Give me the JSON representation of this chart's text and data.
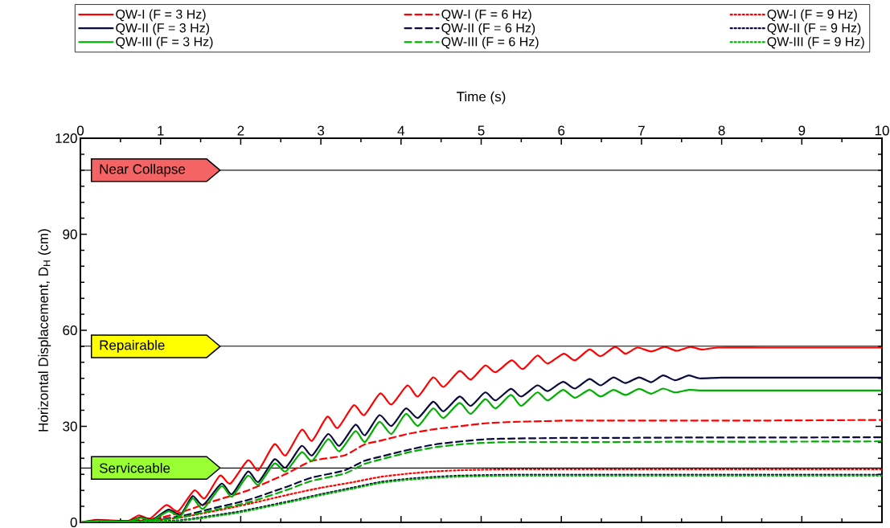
{
  "chart_data": {
    "type": "line",
    "xlabel": "Time (s)",
    "ylabel": "Horizontal Displacement, D$_{H}$ (cm)",
    "xlim": [
      0,
      10
    ],
    "xticks": [
      0,
      1,
      2,
      3,
      4,
      5,
      6,
      7,
      8,
      9,
      10
    ],
    "ylim": [
      0,
      120
    ],
    "yticks": [
      0,
      30,
      60,
      90,
      120
    ],
    "legend": "top",
    "marker": "none",
    "ref_lines": [
      {
        "axis": "y",
        "value": 110,
        "label": "Near Collapse",
        "color": "#000000"
      },
      {
        "axis": "y",
        "value": 55,
        "label": "Repairable",
        "color": "#000000"
      },
      {
        "axis": "y",
        "value": 17,
        "label": "Serviceable",
        "color": "#000000"
      }
    ],
    "series": [
      {
        "name": "QW-I (F = 3 Hz)",
        "color": "#ff0000",
        "line_style": "solid",
        "x": [
          0,
          0.2,
          0.4,
          0.6,
          0.73,
          0.87,
          1.07,
          1.22,
          1.42,
          1.55,
          1.74,
          1.87,
          2.09,
          2.22,
          2.42,
          2.56,
          2.76,
          2.89,
          3.08,
          3.21,
          3.41,
          3.54,
          3.74,
          3.88,
          4.08,
          4.21,
          4.4,
          4.53,
          4.73,
          4.87,
          5.05,
          5.18,
          5.38,
          5.52,
          5.7,
          5.83,
          6.03,
          6.17,
          6.35,
          6.49,
          6.67,
          6.8,
          6.95,
          7.12,
          7.29,
          7.44,
          7.61,
          7.76,
          7.95,
          8.5,
          9,
          10
        ],
        "values": [
          0,
          0.8,
          0.6,
          0.5,
          2.2,
          1.2,
          5.4,
          3.5,
          10,
          7.5,
          14.6,
          12.1,
          19.4,
          16.3,
          24.4,
          20.9,
          28.9,
          25.5,
          33.0,
          29.5,
          36.6,
          33.5,
          40.3,
          36.8,
          42.8,
          39.3,
          45.3,
          42.3,
          47.3,
          44.6,
          49.0,
          46.9,
          50.6,
          47.9,
          52.1,
          49.6,
          52.7,
          50.6,
          54.0,
          51.9,
          54.8,
          52.7,
          54.6,
          53.4,
          54.8,
          53.6,
          54.8,
          54.0,
          54.6,
          54.6,
          54.6,
          54.6
        ]
      },
      {
        "name": "QW-I (F = 6 Hz)",
        "color": "#ff0000",
        "line_style": "dashed",
        "x": [
          0,
          0.5,
          1.0,
          1.3,
          1.62,
          2.09,
          2.56,
          2.89,
          3.29,
          3.54,
          3.74,
          4.08,
          4.41,
          4.75,
          5.08,
          5.42,
          5.75,
          6.09,
          6.75,
          7.5,
          8.5,
          10
        ],
        "values": [
          0,
          0.2,
          1.5,
          3.5,
          6.3,
          10.0,
          15.1,
          19.2,
          20.9,
          24.3,
          25.5,
          27.6,
          29.1,
          30.1,
          31.0,
          31.4,
          31.6,
          31.8,
          31.8,
          31.8,
          31.8,
          32.0
        ]
      },
      {
        "name": "QW-I (F = 9 Hz)",
        "color": "#ff0000",
        "line_style": "dotted",
        "x": [
          0,
          0.5,
          1.0,
          1.29,
          1.96,
          2.62,
          3.0,
          3.41,
          3.74,
          4.08,
          4.41,
          4.74,
          5.42,
          6.5,
          8,
          10
        ],
        "values": [
          0,
          0.2,
          0.9,
          1.7,
          5.0,
          8.8,
          10.8,
          12.6,
          14.2,
          15.2,
          15.9,
          16.3,
          16.6,
          16.6,
          16.6,
          16.6
        ]
      },
      {
        "name": "QW-II (F = 3 Hz)",
        "color": "#0a0a3c",
        "line_style": "solid",
        "x": [
          0,
          0.2,
          0.4,
          0.6,
          0.75,
          0.9,
          1.1,
          1.25,
          1.4,
          1.53,
          1.76,
          1.89,
          2.09,
          2.22,
          2.42,
          2.56,
          2.76,
          2.89,
          3.09,
          3.23,
          3.43,
          3.55,
          3.73,
          3.88,
          4.06,
          4.21,
          4.4,
          4.53,
          4.73,
          4.87,
          5.05,
          5.18,
          5.37,
          5.5,
          5.7,
          5.83,
          6.02,
          6.17,
          6.35,
          6.49,
          6.65,
          6.8,
          6.97,
          7.12,
          7.27,
          7.42,
          7.59,
          7.72,
          8.0,
          8.5,
          9,
          10
        ],
        "values": [
          0,
          0.6,
          0.5,
          0.4,
          1.6,
          0.9,
          4.0,
          2.4,
          8.2,
          5.4,
          12.1,
          8.8,
          15.9,
          12.6,
          19.7,
          17.1,
          23.9,
          20.9,
          27.6,
          23.9,
          30.5,
          27.2,
          33.5,
          30.1,
          35.6,
          32.6,
          37.7,
          34.7,
          39.3,
          36.4,
          40.6,
          38.1,
          41.7,
          39.3,
          42.8,
          41.0,
          43.9,
          41.8,
          44.8,
          42.8,
          45.3,
          43.5,
          45.3,
          43.8,
          45.9,
          44.4,
          45.9,
          45.0,
          45.2,
          45.2,
          45.2,
          45.2
        ]
      },
      {
        "name": "QW-II (F = 6 Hz)",
        "color": "#0a0a3c",
        "line_style": "dashed",
        "x": [
          0,
          0.5,
          1.0,
          1.3,
          1.62,
          2.09,
          2.56,
          2.89,
          3.29,
          3.54,
          3.74,
          4.08,
          4.41,
          4.75,
          5.08,
          5.42,
          5.75,
          6.09,
          6.75,
          7.5,
          8.5,
          10
        ],
        "values": [
          0,
          0.1,
          1.0,
          2.2,
          4.2,
          7.0,
          11.0,
          14.0,
          16.2,
          19.2,
          20.5,
          22.6,
          24.3,
          25.3,
          26.0,
          26.2,
          26.3,
          26.4,
          26.4,
          26.5,
          26.5,
          26.6
        ]
      },
      {
        "name": "QW-II (F = 9 Hz)",
        "color": "#0a0a3c",
        "line_style": "dotted",
        "x": [
          0,
          0.5,
          1.0,
          1.29,
          1.96,
          2.62,
          3.0,
          3.41,
          3.74,
          4.08,
          4.41,
          4.74,
          5.42,
          6.5,
          8,
          10
        ],
        "values": [
          0,
          0.1,
          0.4,
          0.8,
          3.3,
          6.7,
          8.8,
          10.9,
          12.6,
          13.6,
          14.2,
          14.6,
          14.9,
          14.9,
          14.9,
          14.9
        ]
      },
      {
        "name": "QW-III (F = 3 Hz)",
        "color": "#00b000",
        "line_style": "solid",
        "x": [
          0,
          0.2,
          0.4,
          0.6,
          0.75,
          0.9,
          1.1,
          1.25,
          1.4,
          1.53,
          1.76,
          1.89,
          2.09,
          2.22,
          2.42,
          2.56,
          2.76,
          2.89,
          3.09,
          3.23,
          3.43,
          3.55,
          3.73,
          3.88,
          4.06,
          4.21,
          4.4,
          4.53,
          4.73,
          4.87,
          5.05,
          5.18,
          5.37,
          5.5,
          5.7,
          5.83,
          6.02,
          6.17,
          6.35,
          6.49,
          6.65,
          6.8,
          6.97,
          7.12,
          7.27,
          7.42,
          7.59,
          7.72,
          8.0,
          8.5,
          9,
          10
        ],
        "values": [
          0,
          0.5,
          0.4,
          0.3,
          1.4,
          0.7,
          3.5,
          2.0,
          7.5,
          4.2,
          11.3,
          8.0,
          14.6,
          11.7,
          18.4,
          15.9,
          21.9,
          19.2,
          26.0,
          22.2,
          28.5,
          25.1,
          31.4,
          27.6,
          33.9,
          30.1,
          35.6,
          32.6,
          37.3,
          33.9,
          38.5,
          35.6,
          39.8,
          36.4,
          40.6,
          38.1,
          41.4,
          38.9,
          41.4,
          39.3,
          41.4,
          39.8,
          41.7,
          40.2,
          41.8,
          40.6,
          41.4,
          41.2,
          41.2,
          41.2,
          41.2,
          41.2
        ]
      },
      {
        "name": "QW-III (F = 6 Hz)",
        "color": "#00b000",
        "line_style": "dashed",
        "x": [
          0,
          0.5,
          1.0,
          1.3,
          1.62,
          2.09,
          2.56,
          2.89,
          3.29,
          3.54,
          3.74,
          4.08,
          4.41,
          4.75,
          5.08,
          5.42,
          5.75,
          6.09,
          6.75,
          7.5,
          8.5,
          10
        ],
        "values": [
          0,
          0.1,
          0.8,
          1.8,
          3.6,
          6.2,
          10.0,
          13.0,
          15.2,
          18.2,
          19.6,
          21.8,
          23.4,
          24.4,
          24.9,
          25.1,
          25.1,
          25.1,
          25.1,
          25.2,
          25.2,
          25.3
        ]
      },
      {
        "name": "QW-III (F = 9 Hz)",
        "color": "#00b000",
        "line_style": "dotted",
        "x": [
          0,
          0.5,
          1.0,
          1.29,
          1.96,
          2.62,
          3.0,
          3.41,
          3.74,
          4.08,
          4.41,
          4.74,
          5.42,
          6.5,
          8,
          10
        ],
        "values": [
          0,
          0.1,
          0.3,
          0.6,
          3.0,
          6.4,
          8.5,
          10.6,
          12.3,
          13.3,
          13.9,
          14.3,
          14.6,
          14.6,
          14.6,
          14.6
        ]
      }
    ]
  }
}
